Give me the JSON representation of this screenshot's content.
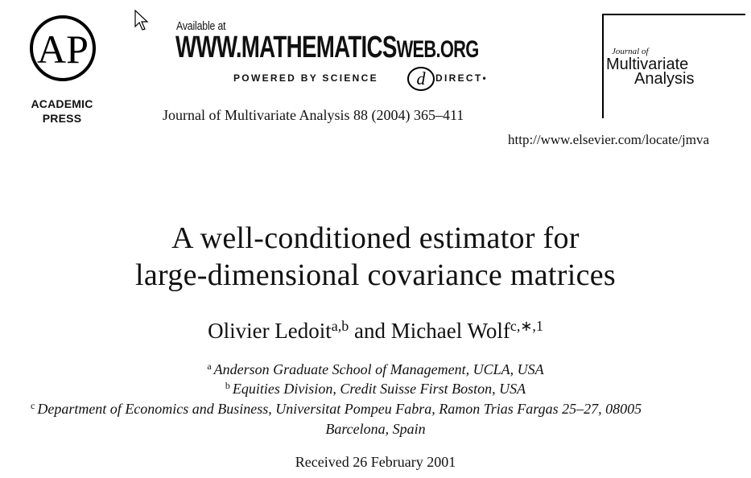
{
  "publisher": {
    "logo_text": "AP",
    "name_line1": "ACADEMIC",
    "name_line2": "PRESS"
  },
  "banner": {
    "available": "Available at",
    "url_main": "WWW.MATHEMATICS",
    "url_tail": "WEB.ORG",
    "powered": "POWERED BY SCIENCE",
    "direct": "DIRECT•"
  },
  "citation": "Journal of Multivariate Analysis 88 (2004) 365–411",
  "journal_box": {
    "of": "Journal of",
    "title_line1": "Multivariate",
    "title_line2": "Analysis",
    "url": "http://www.elsevier.com/locate/jmva"
  },
  "paper": {
    "title_line1": "A well-conditioned estimator for",
    "title_line2": "large-dimensional covariance matrices",
    "author1": "Olivier Ledoit",
    "author1_sup": "a,b",
    "and": " and ",
    "author2": "Michael Wolf",
    "author2_sup": "c,∗,1",
    "affiliations": [
      {
        "mark": "a",
        "text": "Anderson Graduate School of Management, UCLA, USA"
      },
      {
        "mark": "b",
        "text": "Equities Division, Credit Suisse First Boston, USA"
      },
      {
        "mark": "c",
        "text": "Department of Economics and Business, Universitat Pompeu Fabra, Ramon Trias Fargas 25–27, 08005",
        "cont": "Barcelona, Spain"
      }
    ],
    "received": "Received 26 February 2001"
  }
}
